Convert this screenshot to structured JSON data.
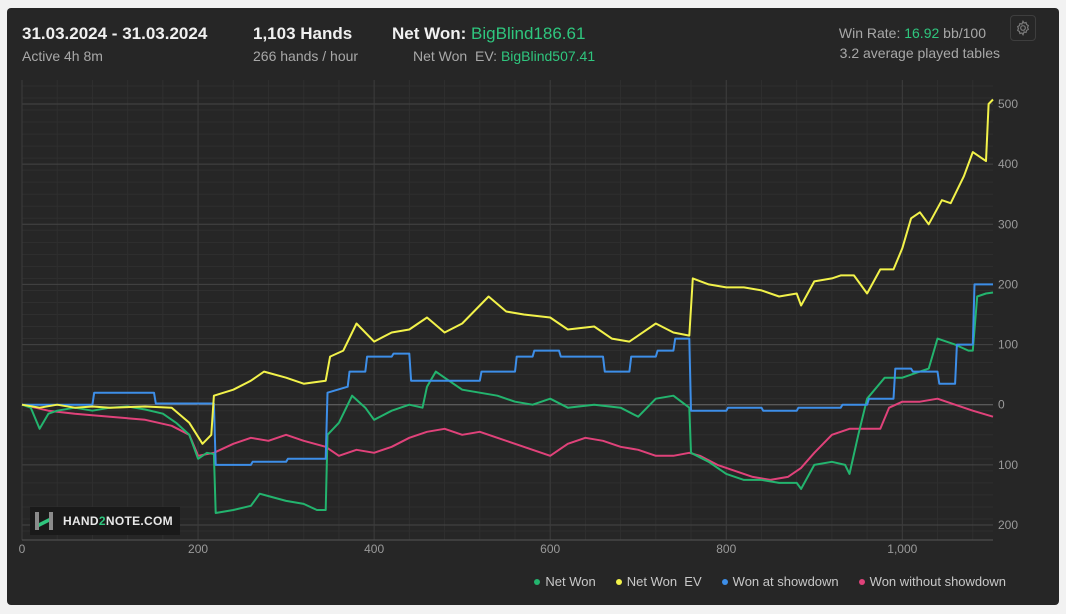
{
  "header": {
    "date_range": "31.03.2024 - 31.03.2024",
    "active_time": "Active 4h 8m",
    "hands": "1,103 Hands",
    "hands_per_hour": "266 hands / hour",
    "net_won_label": "Net Won:",
    "net_won_value": "BigBlind186.61",
    "net_won_ev_label": "Net Won  EV:",
    "net_won_ev_value": "BigBlind507.41",
    "win_rate_label": "Win Rate:",
    "win_rate_value": "16.92",
    "win_rate_unit": "bb/100",
    "avg_tables": "3.2 average played tables",
    "settings_icon": "gear-icon"
  },
  "logo": {
    "text_a": "HAND",
    "text_b": "2",
    "text_c": "NOTE.COM"
  },
  "colors": {
    "net_won": "#23b46e",
    "net_won_ev": "#f2f24a",
    "won_at_showdown": "#3d8ee8",
    "won_without_showdown": "#e0427a",
    "positive_text": "#2fc67e"
  },
  "chart_data": {
    "type": "line",
    "xlim": [
      0,
      1103
    ],
    "ylim": [
      -200,
      500
    ],
    "x_ticks": [
      0,
      200,
      400,
      600,
      800,
      1000
    ],
    "x_tick_labels": [
      "0",
      "200",
      "400",
      "600",
      "800",
      "1,000"
    ],
    "y_ticks": [
      500,
      400,
      300,
      200,
      100,
      0,
      -100,
      -200
    ],
    "y_tick_labels": [
      "500",
      "400",
      "300",
      "200",
      "100",
      "0",
      "100",
      "200"
    ],
    "legend_position": "bottom-right",
    "grid": true,
    "series": [
      {
        "name": "Net Won",
        "color": "#23b46e",
        "points": [
          [
            0,
            0
          ],
          [
            10,
            -5
          ],
          [
            20,
            -40
          ],
          [
            30,
            -15
          ],
          [
            40,
            -10
          ],
          [
            60,
            -5
          ],
          [
            80,
            -10
          ],
          [
            100,
            -5
          ],
          [
            120,
            -3
          ],
          [
            140,
            -8
          ],
          [
            160,
            -15
          ],
          [
            175,
            -30
          ],
          [
            190,
            -50
          ],
          [
            200,
            -90
          ],
          [
            210,
            -80
          ],
          [
            218,
            -82
          ],
          [
            220,
            -180
          ],
          [
            240,
            -175
          ],
          [
            260,
            -168
          ],
          [
            270,
            -148
          ],
          [
            280,
            -152
          ],
          [
            300,
            -160
          ],
          [
            320,
            -165
          ],
          [
            335,
            -175
          ],
          [
            345,
            -175
          ],
          [
            347,
            -50
          ],
          [
            360,
            -30
          ],
          [
            375,
            15
          ],
          [
            390,
            -5
          ],
          [
            400,
            -25
          ],
          [
            420,
            -10
          ],
          [
            440,
            0
          ],
          [
            455,
            -5
          ],
          [
            460,
            30
          ],
          [
            470,
            55
          ],
          [
            480,
            45
          ],
          [
            500,
            25
          ],
          [
            520,
            20
          ],
          [
            540,
            15
          ],
          [
            560,
            5
          ],
          [
            580,
            0
          ],
          [
            600,
            10
          ],
          [
            620,
            -5
          ],
          [
            650,
            0
          ],
          [
            680,
            -5
          ],
          [
            700,
            -20
          ],
          [
            720,
            10
          ],
          [
            740,
            15
          ],
          [
            758,
            -5
          ],
          [
            760,
            -80
          ],
          [
            780,
            -95
          ],
          [
            800,
            -115
          ],
          [
            820,
            -125
          ],
          [
            840,
            -125
          ],
          [
            860,
            -130
          ],
          [
            880,
            -130
          ],
          [
            885,
            -140
          ],
          [
            900,
            -100
          ],
          [
            920,
            -95
          ],
          [
            935,
            -100
          ],
          [
            940,
            -115
          ],
          [
            950,
            -50
          ],
          [
            960,
            10
          ],
          [
            980,
            45
          ],
          [
            1000,
            45
          ],
          [
            1020,
            55
          ],
          [
            1030,
            60
          ],
          [
            1040,
            110
          ],
          [
            1060,
            100
          ],
          [
            1075,
            90
          ],
          [
            1080,
            90
          ],
          [
            1085,
            180
          ],
          [
            1095,
            185
          ],
          [
            1103,
            186.61
          ]
        ]
      },
      {
        "name": "Net Won  EV",
        "color": "#f2f24a",
        "points": [
          [
            0,
            0
          ],
          [
            20,
            -5
          ],
          [
            40,
            0
          ],
          [
            60,
            -5
          ],
          [
            80,
            -3
          ],
          [
            100,
            -5
          ],
          [
            140,
            -3
          ],
          [
            170,
            -5
          ],
          [
            190,
            -30
          ],
          [
            205,
            -65
          ],
          [
            215,
            -50
          ],
          [
            218,
            15
          ],
          [
            240,
            25
          ],
          [
            260,
            40
          ],
          [
            275,
            55
          ],
          [
            300,
            45
          ],
          [
            320,
            35
          ],
          [
            345,
            40
          ],
          [
            350,
            80
          ],
          [
            365,
            90
          ],
          [
            380,
            135
          ],
          [
            400,
            105
          ],
          [
            420,
            120
          ],
          [
            440,
            125
          ],
          [
            460,
            145
          ],
          [
            480,
            120
          ],
          [
            500,
            135
          ],
          [
            530,
            180
          ],
          [
            550,
            155
          ],
          [
            570,
            150
          ],
          [
            600,
            145
          ],
          [
            620,
            125
          ],
          [
            650,
            130
          ],
          [
            670,
            110
          ],
          [
            690,
            105
          ],
          [
            700,
            115
          ],
          [
            720,
            135
          ],
          [
            740,
            120
          ],
          [
            758,
            115
          ],
          [
            762,
            210
          ],
          [
            780,
            200
          ],
          [
            800,
            195
          ],
          [
            820,
            195
          ],
          [
            840,
            190
          ],
          [
            860,
            180
          ],
          [
            880,
            185
          ],
          [
            885,
            165
          ],
          [
            900,
            205
          ],
          [
            920,
            210
          ],
          [
            930,
            215
          ],
          [
            945,
            215
          ],
          [
            950,
            205
          ],
          [
            960,
            185
          ],
          [
            975,
            225
          ],
          [
            990,
            225
          ],
          [
            1000,
            260
          ],
          [
            1010,
            310
          ],
          [
            1020,
            320
          ],
          [
            1030,
            300
          ],
          [
            1045,
            340
          ],
          [
            1055,
            335
          ],
          [
            1070,
            380
          ],
          [
            1080,
            420
          ],
          [
            1090,
            410
          ],
          [
            1095,
            405
          ],
          [
            1098,
            500
          ],
          [
            1103,
            507.41
          ]
        ]
      },
      {
        "name": "Won at showdown",
        "color": "#3d8ee8",
        "points": [
          [
            0,
            0
          ],
          [
            80,
            0
          ],
          [
            82,
            20
          ],
          [
            150,
            20
          ],
          [
            152,
            2
          ],
          [
            218,
            2
          ],
          [
            220,
            -100
          ],
          [
            260,
            -100
          ],
          [
            262,
            -95
          ],
          [
            300,
            -95
          ],
          [
            302,
            -90
          ],
          [
            345,
            -90
          ],
          [
            347,
            20
          ],
          [
            370,
            30
          ],
          [
            372,
            55
          ],
          [
            390,
            55
          ],
          [
            392,
            80
          ],
          [
            420,
            80
          ],
          [
            422,
            85
          ],
          [
            440,
            85
          ],
          [
            442,
            40
          ],
          [
            520,
            40
          ],
          [
            522,
            55
          ],
          [
            560,
            55
          ],
          [
            562,
            80
          ],
          [
            580,
            80
          ],
          [
            582,
            90
          ],
          [
            610,
            90
          ],
          [
            612,
            80
          ],
          [
            660,
            80
          ],
          [
            662,
            55
          ],
          [
            690,
            55
          ],
          [
            692,
            80
          ],
          [
            720,
            80
          ],
          [
            722,
            90
          ],
          [
            740,
            90
          ],
          [
            742,
            110
          ],
          [
            758,
            110
          ],
          [
            760,
            -10
          ],
          [
            800,
            -10
          ],
          [
            802,
            -5
          ],
          [
            840,
            -5
          ],
          [
            842,
            -10
          ],
          [
            880,
            -10
          ],
          [
            882,
            -5
          ],
          [
            930,
            -5
          ],
          [
            932,
            0
          ],
          [
            960,
            0
          ],
          [
            962,
            10
          ],
          [
            990,
            10
          ],
          [
            992,
            60
          ],
          [
            1010,
            60
          ],
          [
            1012,
            55
          ],
          [
            1040,
            55
          ],
          [
            1042,
            35
          ],
          [
            1060,
            35
          ],
          [
            1062,
            100
          ],
          [
            1080,
            100
          ],
          [
            1082,
            200
          ],
          [
            1103,
            200
          ]
        ]
      },
      {
        "name": "Won without showdown",
        "color": "#e0427a",
        "points": [
          [
            0,
            0
          ],
          [
            30,
            -10
          ],
          [
            60,
            -15
          ],
          [
            100,
            -20
          ],
          [
            140,
            -25
          ],
          [
            170,
            -35
          ],
          [
            190,
            -50
          ],
          [
            200,
            -85
          ],
          [
            218,
            -80
          ],
          [
            240,
            -65
          ],
          [
            260,
            -55
          ],
          [
            280,
            -60
          ],
          [
            300,
            -50
          ],
          [
            320,
            -60
          ],
          [
            345,
            -70
          ],
          [
            360,
            -85
          ],
          [
            380,
            -75
          ],
          [
            400,
            -80
          ],
          [
            420,
            -70
          ],
          [
            440,
            -55
          ],
          [
            460,
            -45
          ],
          [
            480,
            -40
          ],
          [
            500,
            -50
          ],
          [
            520,
            -45
          ],
          [
            540,
            -55
          ],
          [
            560,
            -65
          ],
          [
            580,
            -75
          ],
          [
            600,
            -85
          ],
          [
            620,
            -65
          ],
          [
            640,
            -55
          ],
          [
            660,
            -60
          ],
          [
            680,
            -70
          ],
          [
            700,
            -75
          ],
          [
            720,
            -85
          ],
          [
            740,
            -85
          ],
          [
            758,
            -80
          ],
          [
            770,
            -85
          ],
          [
            790,
            -100
          ],
          [
            810,
            -110
          ],
          [
            830,
            -120
          ],
          [
            850,
            -125
          ],
          [
            870,
            -120
          ],
          [
            885,
            -105
          ],
          [
            900,
            -80
          ],
          [
            920,
            -50
          ],
          [
            940,
            -40
          ],
          [
            960,
            -40
          ],
          [
            975,
            -40
          ],
          [
            985,
            -5
          ],
          [
            1000,
            5
          ],
          [
            1020,
            5
          ],
          [
            1040,
            10
          ],
          [
            1060,
            0
          ],
          [
            1080,
            -10
          ],
          [
            1103,
            -20
          ]
        ]
      }
    ]
  }
}
